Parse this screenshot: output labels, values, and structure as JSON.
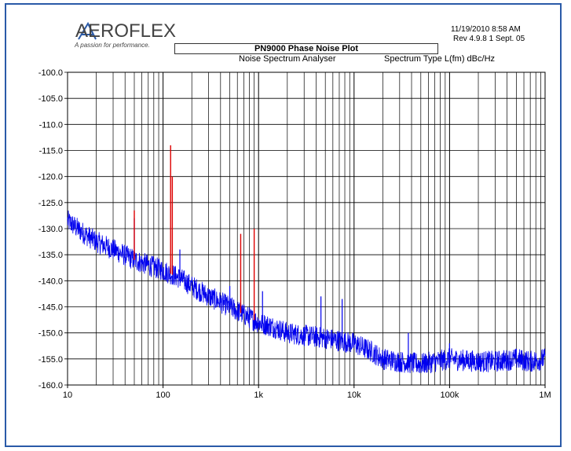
{
  "header": {
    "logo_text": "AEROFLEX",
    "logo_tagline": "A passion for performance.",
    "title": "PN9000  Phase Noise Plot",
    "subtitle": "Noise Spectrum Analyser",
    "spectrum_type": "Spectrum Type  L(fm) dBc/Hz",
    "datetime": "11/19/2010   8:58 AM",
    "revision": "Rev 4.9.8 1 Sept. 05"
  },
  "colors": {
    "frame": "#2a5aa8",
    "noise_trace": "#0000ee",
    "spur_trace": "#dd0000",
    "grid": "#000000"
  },
  "chart_data": {
    "type": "line",
    "x_scale": "log",
    "xlim": [
      10,
      1000000
    ],
    "ylim": [
      -160,
      -100
    ],
    "x_ticks": [
      {
        "value": 10,
        "label": "10"
      },
      {
        "value": 100,
        "label": "100"
      },
      {
        "value": 1000,
        "label": "1k"
      },
      {
        "value": 10000,
        "label": "10k"
      },
      {
        "value": 100000,
        "label": "100k"
      },
      {
        "value": 1000000,
        "label": "1M"
      }
    ],
    "y_ticks": [
      {
        "value": -100,
        "label": "-100.0"
      },
      {
        "value": -105,
        "label": "-105.0"
      },
      {
        "value": -110,
        "label": "-110.0"
      },
      {
        "value": -115,
        "label": "-115.0"
      },
      {
        "value": -120,
        "label": "-120.0"
      },
      {
        "value": -125,
        "label": "-125.0"
      },
      {
        "value": -130,
        "label": "-130.0"
      },
      {
        "value": -135,
        "label": "-135.0"
      },
      {
        "value": -140,
        "label": "-140.0"
      },
      {
        "value": -145,
        "label": "-145.0"
      },
      {
        "value": -150,
        "label": "-150.0"
      },
      {
        "value": -155,
        "label": "-155.0"
      },
      {
        "value": -160,
        "label": "-160.0"
      }
    ],
    "grid": true,
    "series": [
      {
        "color": "#0000ee",
        "noise_floor": [
          [
            10,
            -128.5
          ],
          [
            15,
            -131
          ],
          [
            20,
            -132.5
          ],
          [
            30,
            -134
          ],
          [
            50,
            -136
          ],
          [
            70,
            -137
          ],
          [
            100,
            -138
          ],
          [
            150,
            -139.5
          ],
          [
            200,
            -141
          ],
          [
            300,
            -143
          ],
          [
            500,
            -145
          ],
          [
            700,
            -146.5
          ],
          [
            1000,
            -148
          ],
          [
            1500,
            -149
          ],
          [
            2000,
            -150
          ],
          [
            3000,
            -150.5
          ],
          [
            5000,
            -151
          ],
          [
            7000,
            -151.5
          ],
          [
            10000,
            -152
          ],
          [
            15000,
            -153.5
          ],
          [
            20000,
            -155
          ],
          [
            30000,
            -155.5
          ],
          [
            50000,
            -156
          ],
          [
            70000,
            -155.5
          ],
          [
            100000,
            -155
          ],
          [
            200000,
            -155.5
          ],
          [
            300000,
            -155.5
          ],
          [
            500000,
            -155
          ],
          [
            700000,
            -155.5
          ],
          [
            1000000,
            -155
          ]
        ],
        "spurs": [
          [
            50,
            -128
          ],
          [
            120,
            -137
          ],
          [
            150,
            -134
          ],
          [
            500,
            -141
          ],
          [
            1100,
            -142
          ],
          [
            4500,
            -143
          ],
          [
            7500,
            -143.5
          ],
          [
            37000,
            -150
          ],
          [
            100000,
            -152
          ]
        ]
      },
      {
        "color": "#dd0000",
        "spurs": [
          [
            50,
            -126.5
          ],
          [
            120,
            -114
          ],
          [
            125,
            -120
          ],
          [
            650,
            -131
          ],
          [
            900,
            -130
          ]
        ]
      }
    ]
  }
}
